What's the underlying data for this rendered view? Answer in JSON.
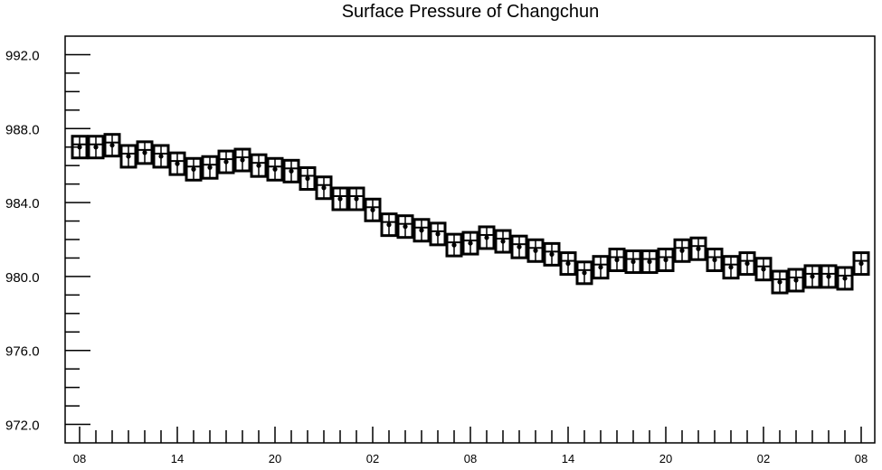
{
  "chart_data": {
    "type": "line",
    "title": "Surface Pressure of Changchun",
    "xlabel": "",
    "ylabel": "",
    "ylim": [
      971.0,
      993.0
    ],
    "y_ticks": [
      "992.0",
      "988.0",
      "984.0",
      "980.0",
      "976.0",
      "972.0"
    ],
    "x_tick_labels": [
      "08",
      "14",
      "20",
      "02",
      "08",
      "14",
      "20",
      "02",
      "08"
    ],
    "grid": false,
    "series": [
      {
        "marker": "boxed-cross",
        "values": [
          987.0,
          987.0,
          987.1,
          986.5,
          986.7,
          986.5,
          986.1,
          985.8,
          985.9,
          986.2,
          986.3,
          986.0,
          985.8,
          985.7,
          985.3,
          984.8,
          984.2,
          984.2,
          983.6,
          982.8,
          982.7,
          982.5,
          982.3,
          981.7,
          981.8,
          982.1,
          981.9,
          981.6,
          981.4,
          981.2,
          980.7,
          980.2,
          980.5,
          980.9,
          980.8,
          980.8,
          980.9,
          981.4,
          981.5,
          980.9,
          980.5,
          980.7,
          980.4,
          979.7,
          979.8,
          980.0,
          980.0,
          979.9,
          980.7
        ]
      }
    ]
  }
}
